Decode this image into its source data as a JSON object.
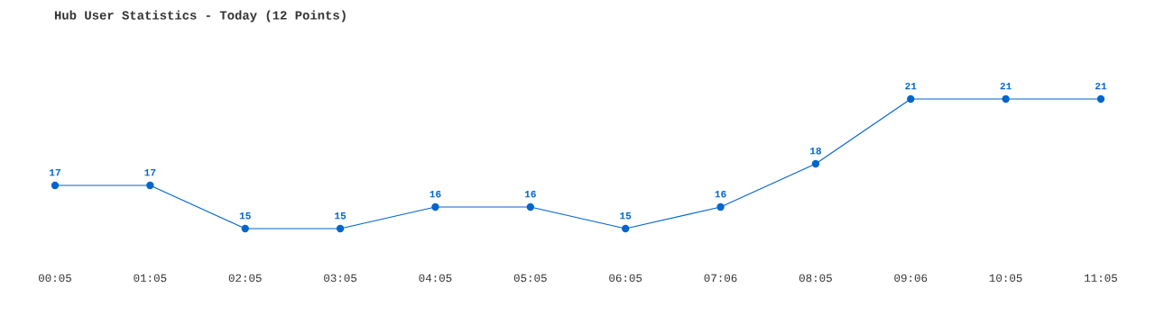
{
  "chart_data": {
    "type": "line",
    "title": "Hub User Statistics - Today (12 Points)",
    "categories": [
      "00:05",
      "01:05",
      "02:05",
      "03:05",
      "04:05",
      "05:05",
      "06:05",
      "07:06",
      "08:05",
      "09:06",
      "10:05",
      "11:05"
    ],
    "series": [
      {
        "color": "#0066cc",
        "values": [
          17,
          17,
          15,
          15,
          16,
          16,
          15,
          16,
          18,
          21,
          21,
          21
        ]
      }
    ],
    "data_labels": true,
    "marker": "circle",
    "line_style": "solid",
    "grid": false,
    "legend": false,
    "tick_labels": "x"
  }
}
